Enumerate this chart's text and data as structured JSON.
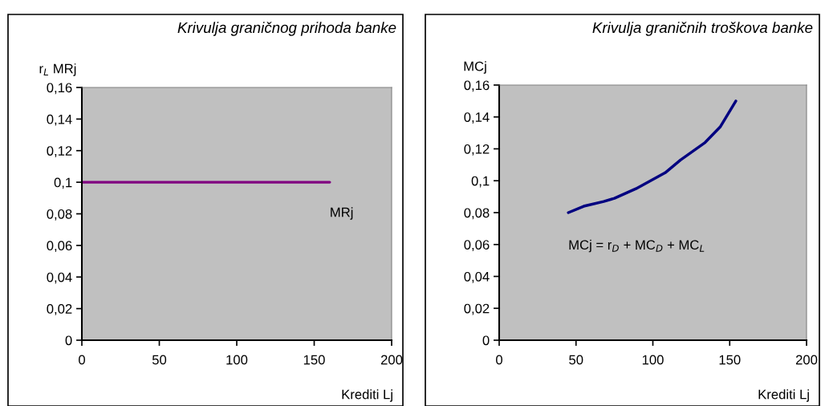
{
  "chart_data": [
    {
      "type": "line",
      "title": "Krivulja graničnog prihoda banke",
      "ylabel": "r$_{L}$ MRj",
      "xlabel": "Krediti Lj",
      "grid": false,
      "legend": false,
      "marker": "none",
      "line_style": "solid",
      "xlim": [
        0,
        200
      ],
      "xticks": [
        0,
        50,
        100,
        150,
        200
      ],
      "ylim": [
        0,
        0.16
      ],
      "yticks": [
        {
          "value": 0,
          "label": "0"
        },
        {
          "value": 0.02,
          "label": "0,02"
        },
        {
          "value": 0.04,
          "label": "0,04"
        },
        {
          "value": 0.06,
          "label": "0,06"
        },
        {
          "value": 0.08,
          "label": "0,08"
        },
        {
          "value": 0.1,
          "label": "0,1"
        },
        {
          "value": 0.12,
          "label": "0,12"
        },
        {
          "value": 0.14,
          "label": "0,14"
        },
        {
          "value": 0.16,
          "label": "0,16"
        }
      ],
      "series": [
        {
          "name": "MRj",
          "color": "#800080",
          "x": [
            0,
            50,
            100,
            160
          ],
          "values": [
            0.1,
            0.1,
            0.1,
            0.1
          ]
        }
      ]
    },
    {
      "type": "line",
      "title": "Krivulja graničnih troškova banke",
      "ylabel": "MCj",
      "xlabel": "Krediti Lj",
      "grid": false,
      "legend": false,
      "marker": "none",
      "line_style": "solid",
      "xlim": [
        0,
        200
      ],
      "xticks": [
        0,
        50,
        100,
        150,
        200
      ],
      "ylim": [
        0,
        0.16
      ],
      "yticks": [
        {
          "value": 0,
          "label": "0"
        },
        {
          "value": 0.02,
          "label": "0,02"
        },
        {
          "value": 0.04,
          "label": "0,04"
        },
        {
          "value": 0.06,
          "label": "0,06"
        },
        {
          "value": 0.08,
          "label": "0,08"
        },
        {
          "value": 0.1,
          "label": "0,1"
        },
        {
          "value": 0.12,
          "label": "0,12"
        },
        {
          "value": 0.14,
          "label": "0,14"
        },
        {
          "value": 0.16,
          "label": "0,16"
        }
      ],
      "series": [
        {
          "name": "MCj = r$_{D}$ + MC$_{D}$ + MC$_{L}$",
          "color": "#000080",
          "x": [
            45,
            55,
            68,
            75,
            89,
            108,
            118,
            134,
            144,
            154
          ],
          "values": [
            0.08,
            0.084,
            0.087,
            0.089,
            0.095,
            0.105,
            0.113,
            0.124,
            0.134,
            0.15
          ]
        }
      ]
    }
  ]
}
